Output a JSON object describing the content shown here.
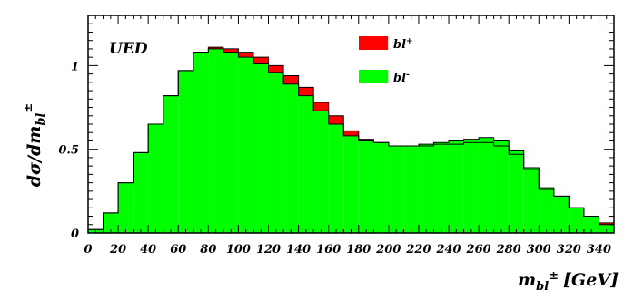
{
  "chart_data": {
    "type": "bar",
    "annotation": "UED",
    "ylabel": {
      "main": "dσ/dm",
      "subscript": "bl",
      "superscript": "±"
    },
    "xlabel": {
      "main": "m",
      "subscript": "bl",
      "superscript": "±",
      "unit": "[GeV]"
    },
    "xlim": [
      0,
      350
    ],
    "ylim": [
      0,
      1.3
    ],
    "bin_width": 10,
    "x_tick_labels": [
      "0",
      "20",
      "40",
      "60",
      "80",
      "100",
      "120",
      "140",
      "160",
      "180",
      "200",
      "220",
      "240",
      "260",
      "280",
      "300",
      "320",
      "340"
    ],
    "x_ticks": [
      0,
      20,
      40,
      60,
      80,
      100,
      120,
      140,
      160,
      180,
      200,
      220,
      240,
      260,
      280,
      300,
      320,
      340
    ],
    "y_tick_labels": [
      "0",
      "0.5",
      "1"
    ],
    "y_ticks": [
      0,
      0.5,
      1
    ],
    "bin_left_edges": [
      0,
      10,
      20,
      30,
      40,
      50,
      60,
      70,
      80,
      90,
      100,
      110,
      120,
      130,
      140,
      150,
      160,
      170,
      180,
      190,
      200,
      210,
      220,
      230,
      240,
      250,
      260,
      270,
      280,
      290,
      300,
      310,
      320,
      330,
      340
    ],
    "series": [
      {
        "name": "bl",
        "name_sup": "+",
        "color": "#ff0000",
        "values": [
          0.02,
          0.12,
          0.3,
          0.48,
          0.65,
          0.82,
          0.97,
          1.08,
          1.11,
          1.1,
          1.08,
          1.05,
          1.0,
          0.94,
          0.87,
          0.78,
          0.7,
          0.61,
          0.56,
          0.54,
          0.52,
          0.52,
          0.52,
          0.53,
          0.53,
          0.54,
          0.54,
          0.52,
          0.47,
          0.38,
          0.26,
          0.22,
          0.15,
          0.1,
          0.06
        ]
      },
      {
        "name": "bl",
        "name_sup": "-",
        "color": "#00ff00",
        "values": [
          0.02,
          0.12,
          0.3,
          0.48,
          0.65,
          0.82,
          0.97,
          1.08,
          1.1,
          1.08,
          1.05,
          1.01,
          0.96,
          0.89,
          0.82,
          0.73,
          0.65,
          0.58,
          0.55,
          0.54,
          0.52,
          0.52,
          0.53,
          0.54,
          0.55,
          0.56,
          0.57,
          0.55,
          0.49,
          0.39,
          0.27,
          0.22,
          0.15,
          0.1,
          0.05
        ]
      }
    ]
  }
}
